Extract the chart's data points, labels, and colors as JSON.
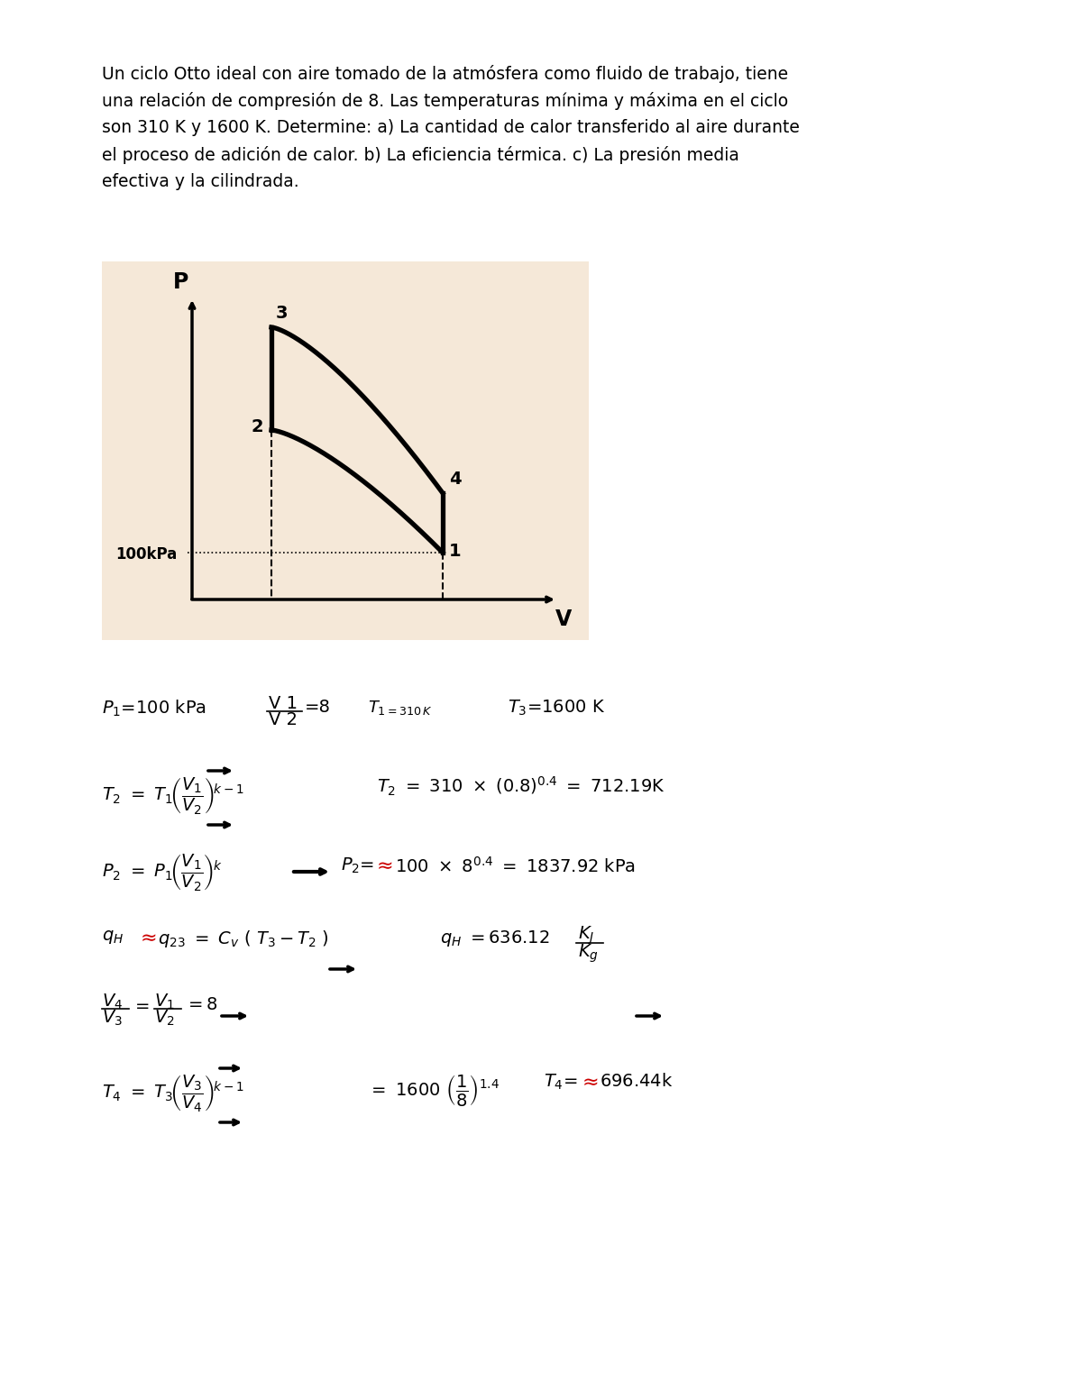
{
  "intro_text_lines": [
    "Un ciclo Otto ideal con aire tomado de la atmósfera como fluido de trabajo, tiene",
    "una relación de compresión de 8. Las temperaturas mínima y máxima en el ciclo",
    "son 310 K y 1600 K. Determine: a) La cantidad de calor transferido al aire durante",
    "el proceso de adición de calor. b) La eficiencia térmica. c) La presión media",
    "efectiva y la cilindrada."
  ],
  "diagram_bg": "#f5e8d8",
  "page_bg": "#ffffff",
  "text_color": "#000000",
  "red_color": "#cc0000"
}
